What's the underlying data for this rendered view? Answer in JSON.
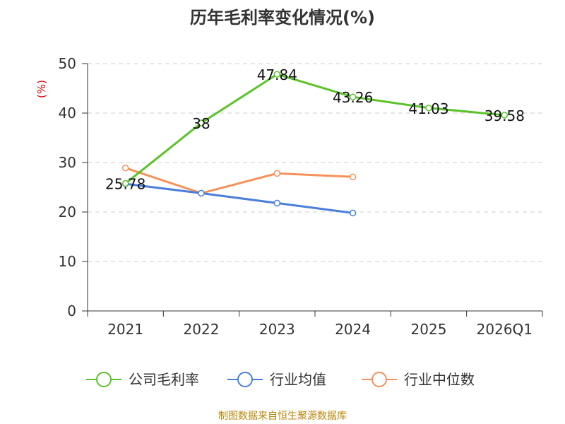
{
  "chart_data": {
    "type": "line",
    "title": "历年毛利率变化情况(%)",
    "ylabel": "(%)",
    "xlabel": "",
    "categories": [
      "2021",
      "2022",
      "2023",
      "2024",
      "2025",
      "2026Q1"
    ],
    "ylim": [
      0,
      50
    ],
    "yticks": [
      0,
      10,
      20,
      30,
      40,
      50
    ],
    "grid": true,
    "legend_position": "bottom",
    "series": [
      {
        "name": "公司毛利率",
        "color": "#5cc22a",
        "values": [
          25.78,
          38,
          47.84,
          43.26,
          41.03,
          39.58
        ],
        "labels": [
          "25.78",
          "38",
          "47.84",
          "43.26",
          "41.03",
          "39.58"
        ]
      },
      {
        "name": "行业均值",
        "color": "#4a7fdb",
        "values": [
          25.7,
          23.8,
          21.8,
          19.8,
          null,
          null
        ]
      },
      {
        "name": "行业中位数",
        "color": "#f5915a",
        "values": [
          28.9,
          23.8,
          27.8,
          27.1,
          null,
          null
        ]
      }
    ]
  },
  "footer": "制图数据来自恒生聚源数据库"
}
